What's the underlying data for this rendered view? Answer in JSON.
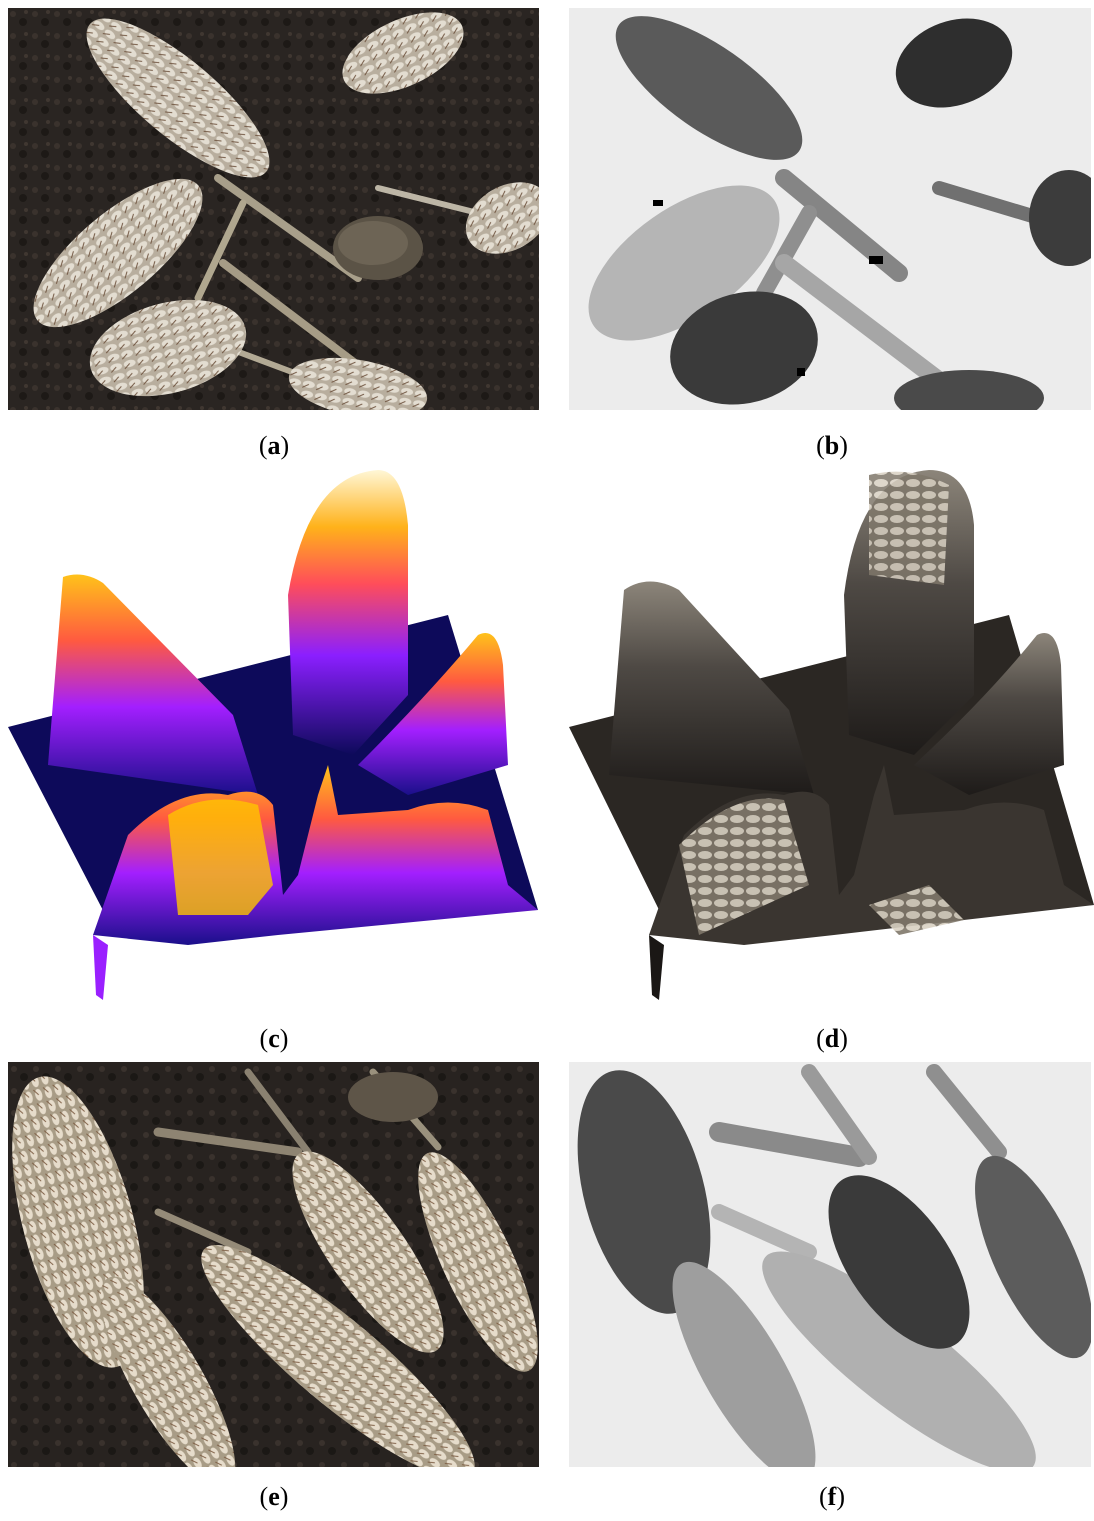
{
  "figure": {
    "panels": [
      {
        "id": "a",
        "label": "a",
        "kind": "rgb-photo",
        "icon": "wheat-ears-photo"
      },
      {
        "id": "b",
        "label": "b",
        "kind": "grayscale-depth-map",
        "icon": "depth-map"
      },
      {
        "id": "c",
        "label": "c",
        "kind": "3d-surface-heat-colormap",
        "icon": "surface-plot"
      },
      {
        "id": "d",
        "label": "d",
        "kind": "3d-surface-textured",
        "icon": "textured-surface"
      },
      {
        "id": "e",
        "label": "e",
        "kind": "rgb-photo",
        "icon": "wheat-ears-photo"
      },
      {
        "id": "f",
        "label": "f",
        "kind": "grayscale-depth-map",
        "icon": "depth-map"
      }
    ],
    "colors": {
      "soil": "#2a2522",
      "ear": "#cfc6b6",
      "depth_background": "#ececec",
      "depth_near": "#3a3a3a",
      "colormap_low": "#0d0a5a",
      "colormap_mid": "#8b1fff",
      "colormap_high": "#ffd21a"
    }
  }
}
